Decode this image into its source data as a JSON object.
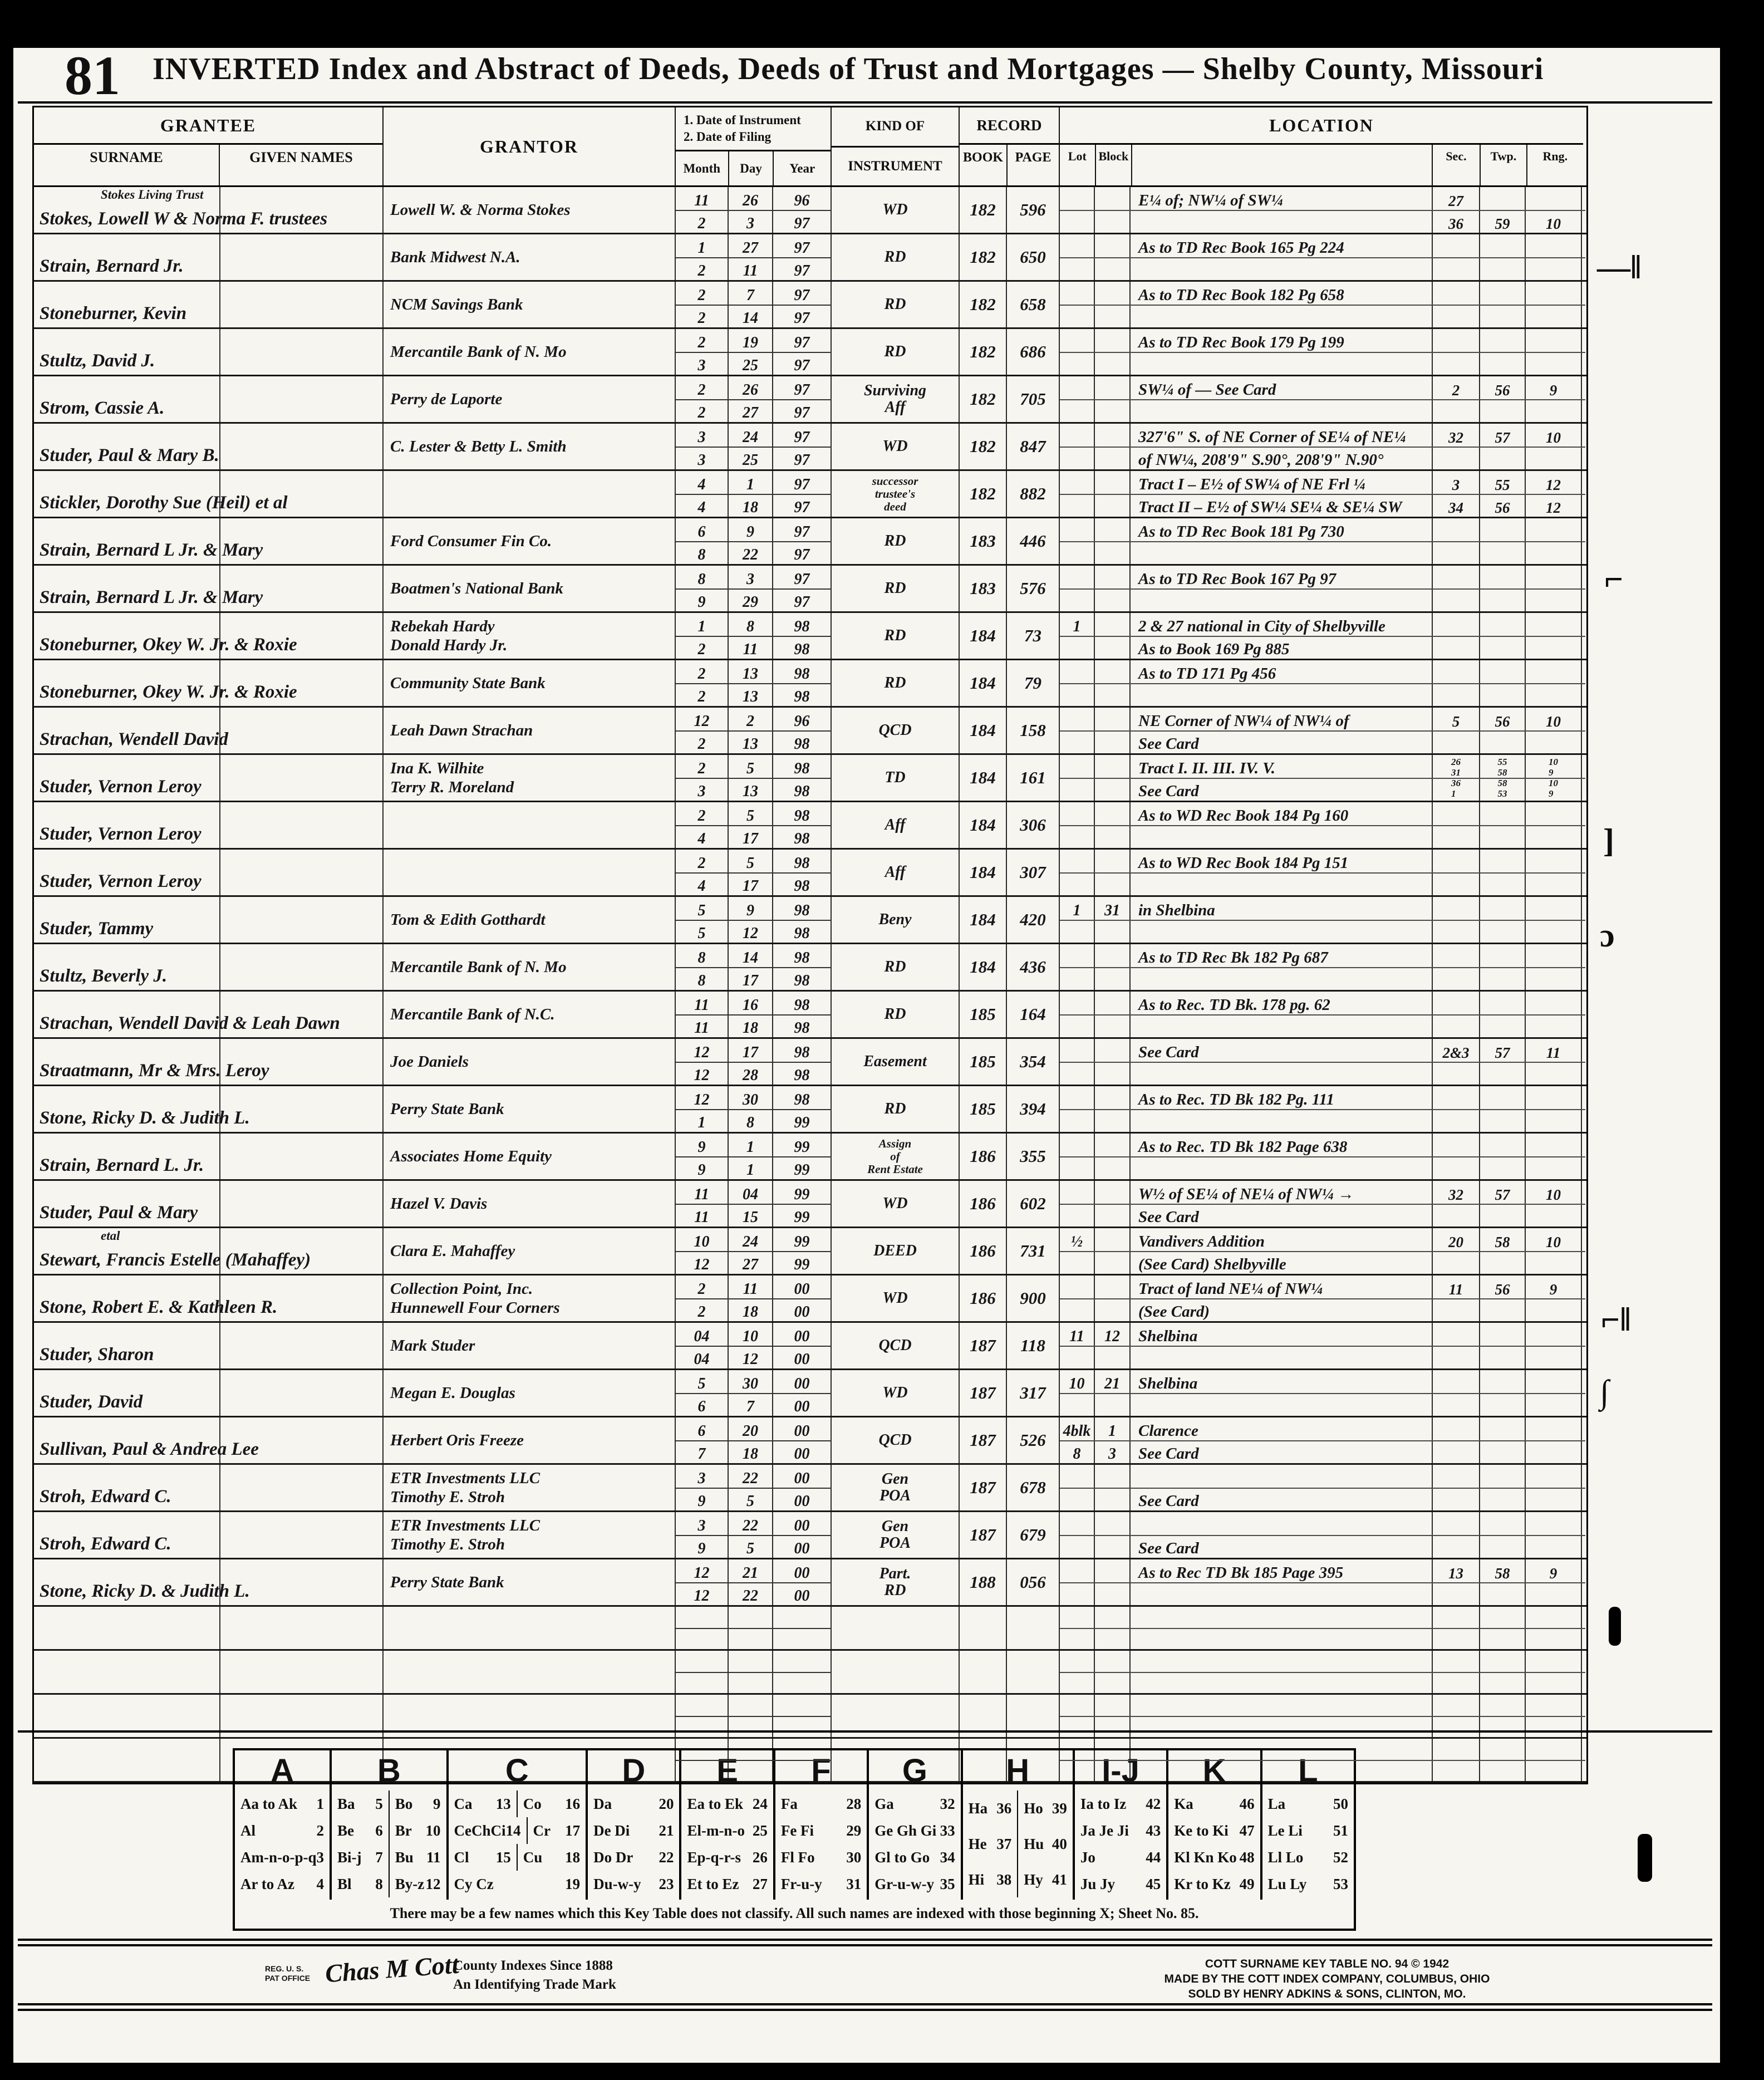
{
  "page": {
    "number": "81",
    "title": "INVERTED Index and Abstract of Deeds, Deeds of Trust and Mortgages — Shelby County, Missouri"
  },
  "headers": {
    "grantee": "GRANTEE",
    "surname": "SURNAME",
    "given_names": "GIVEN NAMES",
    "grantor": "GRANTOR",
    "date1": "1. Date of Instrument",
    "date2": "2. Date of Filing",
    "month": "Month",
    "day": "Day",
    "year": "Year",
    "kind": "KIND OF",
    "instrument": "INSTRUMENT",
    "record": "RECORD",
    "book": "BOOK",
    "page": "PAGE",
    "location": "LOCATION",
    "lot": "Lot",
    "block": "Block",
    "sec": "Sec.",
    "twp": "Twp.",
    "rng": "Rng."
  },
  "blank_rows": 4,
  "rows": [
    {
      "pre": "Stokes Living Trust",
      "grantee": "Stokes, Lowell W & Norma F. trustees",
      "grantor": [
        "Lowell W. & Norma Stokes"
      ],
      "m1": "11",
      "d1": "26",
      "y1": "96",
      "m2": "2",
      "d2": "3",
      "y2": "97",
      "kind": [
        "WD"
      ],
      "book": "182",
      "page": "596",
      "l1": "E¼ of; NW¼ of SW¼",
      "s1": "27",
      "l2": "",
      "s2": "36",
      "t2": "59",
      "r2": "10"
    },
    {
      "grantee": "Strain, Bernard Jr.",
      "grantor": [
        "Bank Midwest N.A."
      ],
      "m1": "1",
      "d1": "27",
      "y1": "97",
      "m2": "2",
      "d2": "11",
      "y2": "97",
      "kind": [
        "RD"
      ],
      "book": "182",
      "page": "650",
      "l1": "As to TD Rec Book 165 Pg 224"
    },
    {
      "grantee": "Stoneburner, Kevin",
      "grantor": [
        "NCM Savings Bank"
      ],
      "m1": "2",
      "d1": "7",
      "y1": "97",
      "m2": "2",
      "d2": "14",
      "y2": "97",
      "kind": [
        "RD"
      ],
      "book": "182",
      "page": "658",
      "l1": "As to TD Rec Book 182 Pg 658"
    },
    {
      "grantee": "Stultz, David J.",
      "grantor": [
        "Mercantile Bank of N. Mo"
      ],
      "m1": "2",
      "d1": "19",
      "y1": "97",
      "m2": "3",
      "d2": "25",
      "y2": "97",
      "kind": [
        "RD"
      ],
      "book": "182",
      "page": "686",
      "l1": "As to TD Rec Book 179 Pg 199"
    },
    {
      "grantee": "Strom, Cassie A.",
      "grantor": [
        "Perry de Laporte"
      ],
      "m1": "2",
      "d1": "26",
      "y1": "97",
      "m2": "2",
      "d2": "27",
      "y2": "97",
      "kind": [
        "Surviving",
        "Aff"
      ],
      "book": "182",
      "page": "705",
      "l1": "SW¼ of —  See Card",
      "s1": "2",
      "t1": "56",
      "r1": "9"
    },
    {
      "grantee": "Studer, Paul & Mary B.",
      "grantor": [
        "C. Lester & Betty L. Smith"
      ],
      "m1": "3",
      "d1": "24",
      "y1": "97",
      "m2": "3",
      "d2": "25",
      "y2": "97",
      "kind": [
        "WD"
      ],
      "book": "182",
      "page": "847",
      "l1": "327'6\" S. of NE Corner of SE¼ of NE¼",
      "s1": "32",
      "t1": "57",
      "r1": "10",
      "l2": "of NW¼, 208'9\" S.90°, 208'9\" N.90°"
    },
    {
      "grantee": "Stickler, Dorothy Sue (Heil) et al",
      "grantor": [],
      "m1": "4",
      "d1": "1",
      "y1": "97",
      "m2": "4",
      "d2": "18",
      "y2": "97",
      "kind": [
        "successor",
        "trustee's",
        "deed"
      ],
      "book": "182",
      "page": "882",
      "l1": "Tract I – E½ of SW¼ of NE Frl ¼",
      "s1": "3",
      "t1": "55",
      "r1": "12",
      "l2": "Tract II – E½ of SW¼ SE¼ & SE¼ SW",
      "s2": "34",
      "t2": "56",
      "r2": "12"
    },
    {
      "grantee": "Strain, Bernard L Jr. & Mary",
      "grantor": [
        "Ford Consumer Fin Co."
      ],
      "m1": "6",
      "d1": "9",
      "y1": "97",
      "m2": "8",
      "d2": "22",
      "y2": "97",
      "kind": [
        "RD"
      ],
      "book": "183",
      "page": "446",
      "l1": "As to TD Rec Book 181 Pg 730"
    },
    {
      "grantee": "Strain, Bernard L Jr. & Mary",
      "grantor": [
        "Boatmen's National Bank"
      ],
      "m1": "8",
      "d1": "3",
      "y1": "97",
      "m2": "9",
      "d2": "29",
      "y2": "97",
      "kind": [
        "RD"
      ],
      "book": "183",
      "page": "576",
      "l1": "As to TD Rec Book 167 Pg 97"
    },
    {
      "grantee": "Stoneburner, Okey W. Jr. & Roxie",
      "grantor": [
        "Rebekah Hardy",
        "Donald Hardy Jr."
      ],
      "m1": "1",
      "d1": "8",
      "y1": "98",
      "m2": "2",
      "d2": "11",
      "y2": "98",
      "kind": [
        "RD"
      ],
      "book": "184",
      "page": "73",
      "lot": "1",
      "l1": "2 & 27 national in City of Shelbyville",
      "l2": "As to Book 169 Pg 885"
    },
    {
      "grantee": "Stoneburner, Okey W. Jr. & Roxie",
      "grantor": [
        "Community State Bank"
      ],
      "m1": "2",
      "d1": "13",
      "y1": "98",
      "m2": "2",
      "d2": "13",
      "y2": "98",
      "kind": [
        "RD"
      ],
      "book": "184",
      "page": "79",
      "l1": "As to TD 171 Pg 456"
    },
    {
      "grantee": "Strachan, Wendell David",
      "grantor": [
        "Leah Dawn Strachan"
      ],
      "m1": "12",
      "d1": "2",
      "y1": "96",
      "m2": "2",
      "d2": "13",
      "y2": "98",
      "kind": [
        "QCD"
      ],
      "book": "184",
      "page": "158",
      "l1": "NE Corner of NW¼ of NW¼ of",
      "s1": "5",
      "t1": "56",
      "r1": "10",
      "l2": "See Card"
    },
    {
      "grantee": "Studer, Vernon Leroy",
      "grantor": [
        "Ina K. Wilhite",
        "Terry R. Moreland"
      ],
      "m1": "2",
      "d1": "5",
      "y1": "98",
      "m2": "3",
      "d2": "13",
      "y2": "98",
      "kind": [
        "TD"
      ],
      "book": "184",
      "page": "161",
      "l1": "Tract I. II. III. IV. V.",
      "s1": "26\n31\n36\n1",
      "t1": "55\n58\n58\n53",
      "r1": "10\n9\n10\n9",
      "l2": "See Card"
    },
    {
      "grantee": "Studer, Vernon Leroy",
      "grantor": [],
      "m1": "2",
      "d1": "5",
      "y1": "98",
      "m2": "4",
      "d2": "17",
      "y2": "98",
      "kind": [
        "Aff"
      ],
      "book": "184",
      "page": "306",
      "l1": "As to WD Rec Book 184 Pg 160"
    },
    {
      "grantee": "Studer, Vernon Leroy",
      "grantor": [],
      "m1": "2",
      "d1": "5",
      "y1": "98",
      "m2": "4",
      "d2": "17",
      "y2": "98",
      "kind": [
        "Aff"
      ],
      "book": "184",
      "page": "307",
      "l1": "As to WD Rec Book 184 Pg 151"
    },
    {
      "grantee": "Studer, Tammy",
      "grantor": [
        "Tom & Edith Gotthardt"
      ],
      "m1": "5",
      "d1": "9",
      "y1": "98",
      "m2": "5",
      "d2": "12",
      "y2": "98",
      "kind": [
        "Beny"
      ],
      "book": "184",
      "page": "420",
      "lot": "1",
      "block": "31",
      "l1": "in Shelbina"
    },
    {
      "grantee": "Stultz, Beverly J.",
      "grantor": [
        "Mercantile Bank of N. Mo"
      ],
      "m1": "8",
      "d1": "14",
      "y1": "98",
      "m2": "8",
      "d2": "17",
      "y2": "98",
      "kind": [
        "RD"
      ],
      "book": "184",
      "page": "436",
      "l1": "As to TD Rec Bk 182 Pg 687"
    },
    {
      "grantee": "Strachan, Wendell David & Leah Dawn",
      "grantor": [
        "Mercantile Bank of N.C."
      ],
      "m1": "11",
      "d1": "16",
      "y1": "98",
      "m2": "11",
      "d2": "18",
      "y2": "98",
      "kind": [
        "RD"
      ],
      "book": "185",
      "page": "164",
      "l1": "As to Rec. TD Bk. 178 pg. 62"
    },
    {
      "grantee": "Straatmann, Mr & Mrs. Leroy",
      "grantor": [
        "Joe Daniels"
      ],
      "m1": "12",
      "d1": "17",
      "y1": "98",
      "m2": "12",
      "d2": "28",
      "y2": "98",
      "kind": [
        "Easement"
      ],
      "book": "185",
      "page": "354",
      "l1": "See Card",
      "s1": "2&3",
      "t1": "57",
      "r1": "11"
    },
    {
      "grantee": "Stone, Ricky D. & Judith L.",
      "grantor": [
        "Perry State Bank"
      ],
      "m1": "12",
      "d1": "30",
      "y1": "98",
      "m2": "1",
      "d2": "8",
      "y2": "99",
      "kind": [
        "RD"
      ],
      "book": "185",
      "page": "394",
      "l1": "As to Rec. TD Bk 182 Pg. 111"
    },
    {
      "grantee": "Strain, Bernard L. Jr.",
      "grantor": [
        "Associates Home Equity"
      ],
      "m1": "9",
      "d1": "1",
      "y1": "99",
      "m2": "9",
      "d2": "1",
      "y2": "99",
      "kind": [
        "Assign",
        "of",
        "Rent Estate"
      ],
      "book": "186",
      "page": "355",
      "l1": "As to Rec. TD Bk 182 Page 638"
    },
    {
      "grantee": "Studer, Paul & Mary",
      "grantor": [
        "Hazel V. Davis"
      ],
      "m1": "11",
      "d1": "04",
      "y1": "99",
      "m2": "11",
      "d2": "15",
      "y2": "99",
      "kind": [
        "WD"
      ],
      "book": "186",
      "page": "602",
      "l1": "W½ of SE¼ of NE¼ of NW¼ →",
      "s1": "32",
      "t1": "57",
      "r1": "10",
      "l2": "See Card"
    },
    {
      "pre": "etal",
      "grantee": "Stewart, Francis Estelle (Mahaffey)",
      "grantor": [
        "Clara E. Mahaffey"
      ],
      "m1": "10",
      "d1": "24",
      "y1": "99",
      "m2": "12",
      "d2": "27",
      "y2": "99",
      "kind": [
        "DEED"
      ],
      "book": "186",
      "page": "731",
      "lot": "½",
      "l1": "Vandivers Addition",
      "s1": "20",
      "t1": "58",
      "r1": "10",
      "l2": "(See Card)   Shelbyville"
    },
    {
      "grantee": "Stone, Robert E. & Kathleen R.",
      "grantor": [
        "Collection Point, Inc.",
        "Hunnewell Four Corners"
      ],
      "m1": "2",
      "d1": "11",
      "y1": "00",
      "m2": "2",
      "d2": "18",
      "y2": "00",
      "kind": [
        "WD"
      ],
      "book": "186",
      "page": "900",
      "l1": "Tract of land NE¼ of NW¼",
      "s1": "11",
      "t1": "56",
      "r1": "9",
      "l2": "(See Card)"
    },
    {
      "grantee": "Studer, Sharon",
      "grantor": [
        "Mark Studer"
      ],
      "m1": "04",
      "d1": "10",
      "y1": "00",
      "m2": "04",
      "d2": "12",
      "y2": "00",
      "kind": [
        "QCD"
      ],
      "book": "187",
      "page": "118",
      "lot": "11",
      "block": "12",
      "l1": "Shelbina"
    },
    {
      "grantee": "Studer, David",
      "grantor": [
        "Megan E. Douglas"
      ],
      "m1": "5",
      "d1": "30",
      "y1": "00",
      "m2": "6",
      "d2": "7",
      "y2": "00",
      "kind": [
        "WD"
      ],
      "book": "187",
      "page": "317",
      "lot": "10",
      "block": "21",
      "l1": "Shelbina"
    },
    {
      "grantee": "Sullivan, Paul & Andrea Lee",
      "grantor": [
        "Herbert Oris Freeze"
      ],
      "m1": "6",
      "d1": "20",
      "y1": "00",
      "m2": "7",
      "d2": "18",
      "y2": "00",
      "kind": [
        "QCD"
      ],
      "book": "187",
      "page": "526",
      "lot": "4blk\n8",
      "block": "1\n3",
      "l1": "Clarence",
      "l2": "See Card"
    },
    {
      "grantee": "Stroh, Edward C.",
      "grantor": [
        "ETR Investments LLC",
        "Timothy E. Stroh"
      ],
      "m1": "3",
      "d1": "22",
      "y1": "00",
      "m2": "9",
      "d2": "5",
      "y2": "00",
      "kind": [
        "Gen",
        "POA"
      ],
      "book": "187",
      "page": "678",
      "l2": "See Card"
    },
    {
      "grantee": "Stroh, Edward C.",
      "grantor": [
        "ETR Investments LLC",
        "Timothy E. Stroh"
      ],
      "m1": "3",
      "d1": "22",
      "y1": "00",
      "m2": "9",
      "d2": "5",
      "y2": "00",
      "kind": [
        "Gen",
        "POA"
      ],
      "book": "187",
      "page": "679",
      "l2": "See Card"
    },
    {
      "grantee": "Stone, Ricky D. & Judith L.",
      "grantor": [
        "Perry State Bank"
      ],
      "m1": "12",
      "d1": "21",
      "y1": "00",
      "m2": "12",
      "d2": "22",
      "y2": "00",
      "kind": [
        "Part.",
        "RD"
      ],
      "book": "188",
      "page": "056",
      "l1": "As to Rec TD Bk 185 Page 395",
      "s1": "13",
      "t1": "58",
      "r1": "9"
    }
  ],
  "key_table": {
    "columns": [
      {
        "letter": "A",
        "rows": [
          [
            "Aa to Ak 1"
          ],
          [
            "Al 2"
          ],
          [
            "Am-n-o-p-q 3"
          ],
          [
            "Ar to Az 4"
          ]
        ]
      },
      {
        "letter": "B",
        "rows": [
          [
            "Ba 5",
            "Bo 9"
          ],
          [
            "Be 6",
            "Br 10"
          ],
          [
            "Bi-j 7",
            "Bu 11"
          ],
          [
            "Bl 8",
            "By-z 12"
          ]
        ]
      },
      {
        "letter": "C",
        "rows": [
          [
            "Ca 13",
            "Co 16"
          ],
          [
            "CeChCi 14",
            "Cr 17"
          ],
          [
            "Cl 15",
            "Cu 18"
          ],
          [
            "Cy Cz 19"
          ]
        ]
      },
      {
        "letter": "D",
        "rows": [
          [
            "Da 20"
          ],
          [
            "De Di 21"
          ],
          [
            "Do Dr 22"
          ],
          [
            "Du-w-y 23"
          ]
        ]
      },
      {
        "letter": "E",
        "rows": [
          [
            "Ea to Ek 24"
          ],
          [
            "El-m-n-o 25"
          ],
          [
            "Ep-q-r-s 26"
          ],
          [
            "Et to Ez 27"
          ]
        ]
      },
      {
        "letter": "F",
        "rows": [
          [
            "Fa 28"
          ],
          [
            "Fe Fi 29"
          ],
          [
            "Fl Fo 30"
          ],
          [
            "Fr-u-y 31"
          ]
        ]
      },
      {
        "letter": "G",
        "rows": [
          [
            "Ga 32"
          ],
          [
            "Ge Gh Gi 33"
          ],
          [
            "Gl to Go 34"
          ],
          [
            "Gr-u-w-y 35"
          ]
        ]
      },
      {
        "letter": "H",
        "rows": [
          [
            "Ha 36",
            "Ho 39"
          ],
          [
            "He 37",
            "Hu 40"
          ],
          [
            "Hi 38",
            "Hy 41"
          ]
        ]
      },
      {
        "letter": "I-J",
        "rows": [
          [
            "Ia to Iz 42"
          ],
          [
            "Ja Je Ji 43"
          ],
          [
            "Jo 44"
          ],
          [
            "Ju Jy 45"
          ]
        ]
      },
      {
        "letter": "K",
        "rows": [
          [
            "Ka 46"
          ],
          [
            "Ke to Ki 47"
          ],
          [
            "Kl Kn Ko 48"
          ],
          [
            "Kr to Kz 49"
          ]
        ]
      },
      {
        "letter": "L",
        "rows": [
          [
            "La 50"
          ],
          [
            "Le Li 51"
          ],
          [
            "Ll Lo 52"
          ],
          [
            "Lu Ly 53"
          ]
        ]
      }
    ],
    "note": "There may be a few names which this Key Table does not classify.   All such names are indexed with those beginning X; Sheet No. 85."
  },
  "footer": {
    "reg1": "REG. U. S.",
    "reg2": "PAT OFFICE",
    "logo": "Chas M Cott",
    "left1": "County Indexes Since 1888",
    "left2": "An Identifying Trade Mark",
    "right1": "COTT SURNAME KEY TABLE NO. 94 © 1942",
    "right2": "MADE BY THE COTT INDEX COMPANY, COLUMBUS, OHIO",
    "right3": "SOLD BY HENRY ADKINS & SONS, CLINTON, MO."
  }
}
